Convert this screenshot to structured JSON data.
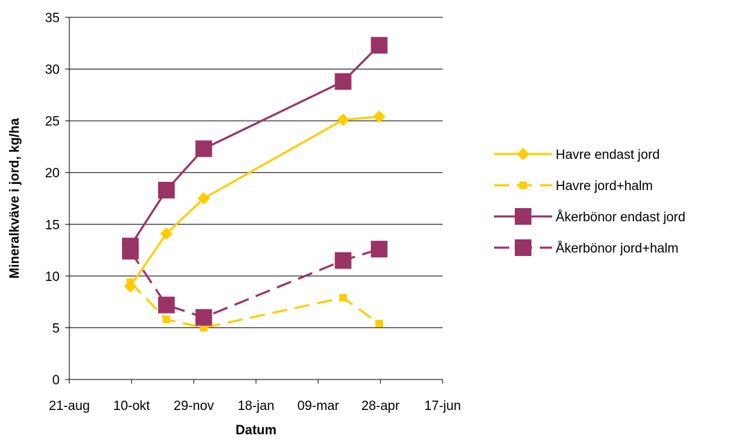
{
  "chart_data": {
    "type": "line",
    "xlabel": "Datum",
    "ylabel": "Mineralkväve i jord, kg/ha",
    "ylim": [
      0,
      35
    ],
    "y_ticks": [
      0,
      5,
      10,
      15,
      20,
      25,
      30,
      35
    ],
    "x_ticks": [
      "21-aug",
      "10-okt",
      "29-nov",
      "18-jan",
      "09-mar",
      "28-apr",
      "17-jun"
    ],
    "x_tick_days": [
      0,
      50,
      100,
      150,
      200,
      250,
      300
    ],
    "grid": "horizontal",
    "legend_position": "right",
    "series": [
      {
        "name": "Havre endast jord",
        "color": "#ffcc00",
        "dash": "solid",
        "marker": "diamond",
        "x": [
          49,
          78,
          108,
          220,
          249
        ],
        "y": [
          9.0,
          14.1,
          17.5,
          25.1,
          25.4
        ]
      },
      {
        "name": "Havre jord+halm",
        "color": "#ffcc00",
        "dash": "dashed",
        "marker": "small-square",
        "x": [
          49,
          78,
          108,
          220,
          249
        ],
        "y": [
          9.4,
          5.8,
          5.0,
          7.9,
          5.4
        ]
      },
      {
        "name": "Åkerbönor endast jord",
        "color": "#993366",
        "dash": "solid",
        "marker": "square",
        "x": [
          49,
          78,
          108,
          220,
          249
        ],
        "y": [
          12.9,
          18.3,
          22.3,
          28.8,
          32.3
        ]
      },
      {
        "name": "Åkerbönor jord+halm",
        "color": "#993366",
        "dash": "dashed",
        "marker": "square",
        "x": [
          49,
          78,
          108,
          220,
          249
        ],
        "y": [
          12.4,
          7.2,
          6.0,
          11.5,
          12.6
        ]
      }
    ]
  }
}
